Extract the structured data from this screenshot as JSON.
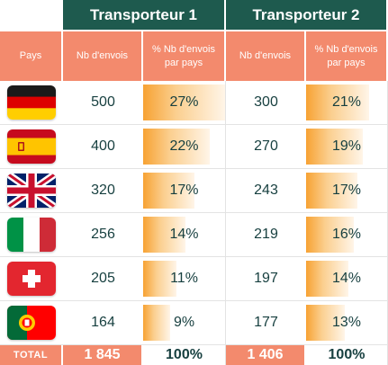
{
  "carriers": [
    {
      "name": "Transporteur 1"
    },
    {
      "name": "Transporteur 2"
    }
  ],
  "headers": {
    "pays": "Pays",
    "nb_envois": "Nb d'envois",
    "pct_line1": "% Nb d'envois",
    "pct_line2": "par pays"
  },
  "rows": [
    {
      "country": "Germany",
      "icon": "germany-flag-icon",
      "t1_count": "500",
      "t1_pct": "27%",
      "t1_fill": 0.27,
      "t2_count": "300",
      "t2_pct": "21%",
      "t2_fill": 0.21
    },
    {
      "country": "Spain",
      "icon": "spain-flag-icon",
      "t1_count": "400",
      "t1_pct": "22%",
      "t1_fill": 0.22,
      "t2_count": "270",
      "t2_pct": "19%",
      "t2_fill": 0.19
    },
    {
      "country": "United Kingdom",
      "icon": "uk-flag-icon",
      "t1_count": "320",
      "t1_pct": "17%",
      "t1_fill": 0.17,
      "t2_count": "243",
      "t2_pct": "17%",
      "t2_fill": 0.17
    },
    {
      "country": "Italy",
      "icon": "italy-flag-icon",
      "t1_count": "256",
      "t1_pct": "14%",
      "t1_fill": 0.14,
      "t2_count": "219",
      "t2_pct": "16%",
      "t2_fill": 0.16
    },
    {
      "country": "Switzerland",
      "icon": "switzerland-flag-icon",
      "t1_count": "205",
      "t1_pct": "11%",
      "t1_fill": 0.11,
      "t2_count": "197",
      "t2_pct": "14%",
      "t2_fill": 0.14
    },
    {
      "country": "Portugal",
      "icon": "portugal-flag-icon",
      "t1_count": "164",
      "t1_pct": "9%",
      "t1_fill": 0.09,
      "t2_count": "177",
      "t2_pct": "13%",
      "t2_fill": 0.13
    }
  ],
  "total": {
    "label": "TOTAL",
    "t1_count": "1 845",
    "t1_pct": "100%",
    "t2_count": "1 406",
    "t2_pct": "100%"
  },
  "colors": {
    "carrier_header": "#1e5a4e",
    "column_header": "#f38a6d",
    "text": "#163f3f",
    "bar": "#f7a233"
  }
}
